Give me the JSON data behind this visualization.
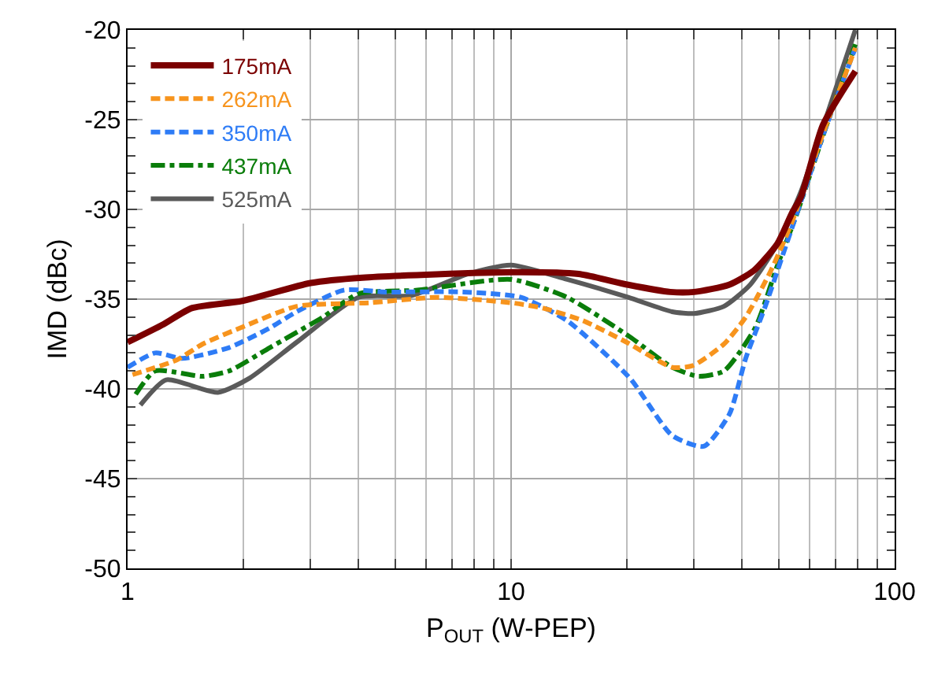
{
  "chart_data": {
    "type": "line",
    "xlabel": "P$_{OUT}$ (W-PEP)",
    "ylabel": "IMD (dBc)",
    "log": "x",
    "grid": true,
    "legend": "top left",
    "marker": "none",
    "xlim": [
      1,
      100
    ],
    "xticks": [
      1,
      10,
      100
    ],
    "ylim": [
      -50,
      -20
    ],
    "yticks": [
      -50,
      -45,
      -40,
      -35,
      -30,
      -25,
      -20
    ],
    "series": [
      {
        "name": "175mA",
        "color": "#7b0000",
        "line_style": "solid",
        "x": [
          1,
          1.24,
          1.47,
          1.99,
          3.0,
          4.1,
          10,
          15,
          20.2,
          26,
          30,
          37,
          43,
          49.5,
          54,
          57,
          65,
          79
        ],
        "values": [
          -37.4,
          -36.4,
          -35.5,
          -35.1,
          -34.1,
          -33.8,
          -33.5,
          -33.6,
          -34.2,
          -34.6,
          -34.6,
          -34.2,
          -33.4,
          -31.9,
          -30.2,
          -29.3,
          -25.3,
          -22.3
        ]
      },
      {
        "name": "262mA",
        "color": "#f7941d",
        "line_style": "dashed",
        "x": [
          1.03,
          1.34,
          1.57,
          2.02,
          2.76,
          4.3,
          6.4,
          10,
          12.1,
          15.4,
          20,
          26.3,
          29.8,
          35.9,
          40.9,
          47.6,
          54,
          65,
          79
        ],
        "values": [
          -39.2,
          -38.4,
          -37.5,
          -36.5,
          -35.4,
          -35.2,
          -34.9,
          -35.2,
          -35.5,
          -36.2,
          -37.4,
          -38.8,
          -38.7,
          -37.5,
          -36.0,
          -33.4,
          -30.7,
          -25.8,
          -21.0
        ]
      },
      {
        "name": "350mA",
        "color": "#2e7cf6",
        "line_style": "dashed",
        "x": [
          1,
          1.18,
          1.39,
          1.84,
          2.35,
          2.76,
          3.66,
          4.7,
          7.5,
          10.6,
          14,
          20.4,
          26.3,
          31.8,
          37.1,
          40.9,
          46,
          52.3,
          57.5,
          66,
          79
        ],
        "values": [
          -38.8,
          -38.0,
          -38.3,
          -37.7,
          -36.6,
          -35.7,
          -34.5,
          -34.6,
          -34.6,
          -34.9,
          -36.2,
          -39.4,
          -42.6,
          -43.2,
          -41.4,
          -38.3,
          -35.4,
          -31.9,
          -29.3,
          -25.5,
          -21.0
        ]
      },
      {
        "name": "437mA",
        "color": "#0a7d0a",
        "line_style": "dotted",
        "x": [
          1.05,
          1.18,
          1.57,
          1.84,
          2.35,
          3.23,
          4.0,
          5.7,
          10,
          14,
          20.4,
          26.3,
          30.8,
          35.9,
          43.3,
          49.5,
          55.7,
          66,
          79
        ],
        "values": [
          -40.3,
          -39.0,
          -39.3,
          -39.0,
          -37.7,
          -36.0,
          -34.7,
          -34.5,
          -33.9,
          -34.9,
          -37.1,
          -38.8,
          -39.3,
          -39.0,
          -36.6,
          -33.1,
          -30.2,
          -25.5,
          -20.8
        ]
      },
      {
        "name": "525mA",
        "color": "#5a5a5a",
        "line_style": "solid",
        "x": [
          1.08,
          1.26,
          1.72,
          2.08,
          2.76,
          4.0,
          5.5,
          7.7,
          10,
          14,
          20.2,
          26.3,
          30,
          35.9,
          42,
          49.5,
          57,
          66,
          79
        ],
        "values": [
          -40.9,
          -39.5,
          -40.2,
          -39.4,
          -37.4,
          -34.9,
          -34.8,
          -33.6,
          -33.1,
          -33.9,
          -34.9,
          -35.7,
          -35.8,
          -35.4,
          -34.2,
          -31.9,
          -29.0,
          -25.0,
          -20.0
        ]
      }
    ]
  }
}
